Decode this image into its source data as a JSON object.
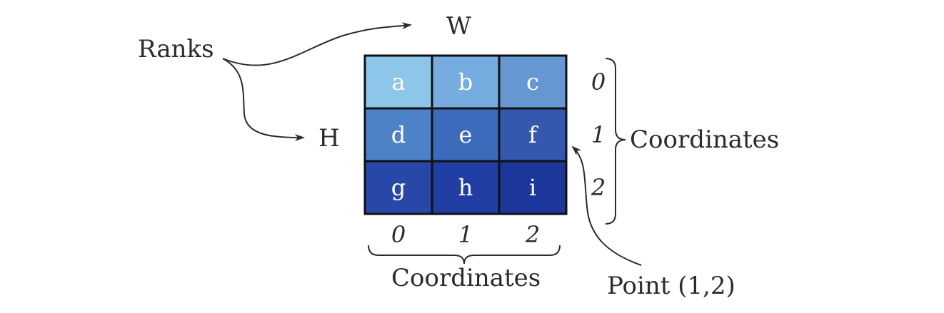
{
  "labels": {
    "ranks": "Ranks",
    "w": "W",
    "h": "H",
    "coordinates_right": "Coordinates",
    "coordinates_bottom": "Coordinates",
    "point": "Point (1,2)"
  },
  "grid": {
    "cells": [
      [
        "a",
        "b",
        "c"
      ],
      [
        "d",
        "e",
        "f"
      ],
      [
        "g",
        "h",
        "i"
      ]
    ],
    "colors": [
      [
        "#8ec6ea",
        "#76acdf",
        "#6598d2"
      ],
      [
        "#4d82c6",
        "#3c6bbb",
        "#3358ad"
      ],
      [
        "#2748a8",
        "#203ea3",
        "#1b379b"
      ]
    ],
    "row_coords": [
      "0",
      "1",
      "2"
    ],
    "col_coords": [
      "0",
      "1",
      "2"
    ]
  }
}
